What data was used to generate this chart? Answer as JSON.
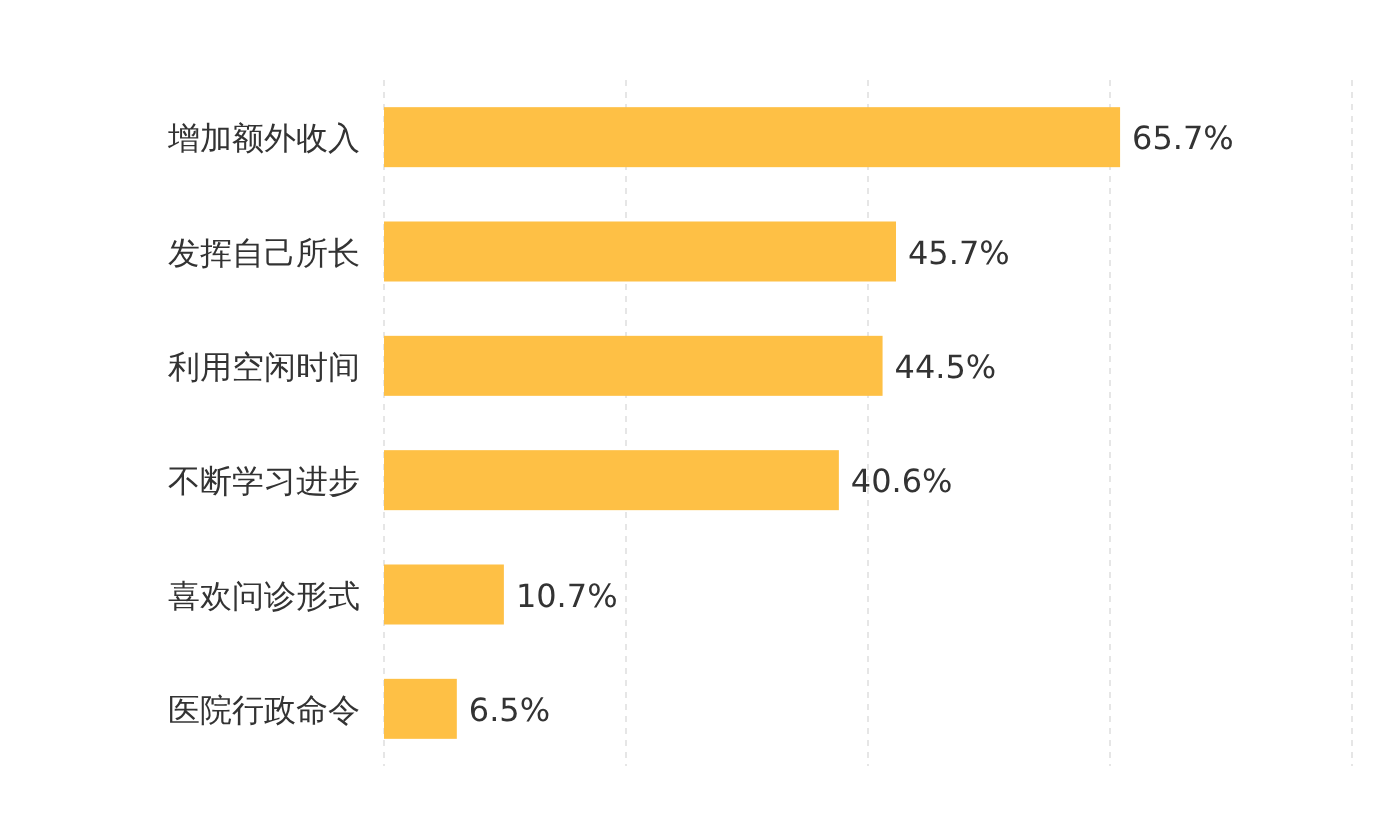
{
  "chart_data": {
    "type": "bar",
    "orientation": "horizontal",
    "categories": [
      "增加额外收入",
      "发挥自己所长",
      "利用空闲时间",
      "不断学习进步",
      "喜欢问诊形式",
      "医院行政命令"
    ],
    "values": [
      65.7,
      45.7,
      44.5,
      40.6,
      10.7,
      6.5
    ],
    "value_labels": [
      "65.7%",
      "45.7%",
      "44.5%",
      "40.6%",
      "10.7%",
      "6.5%"
    ],
    "color": "#fec045",
    "xlim": [
      0,
      86.4
    ],
    "xticks": [
      {
        "value": 0,
        "label": null
      },
      {
        "value": 21.6,
        "label": null
      },
      {
        "value": 43.2,
        "label": null
      },
      {
        "value": 64.8,
        "label": null
      },
      {
        "value": 86.4,
        "label": null
      }
    ],
    "grid": "x"
  }
}
